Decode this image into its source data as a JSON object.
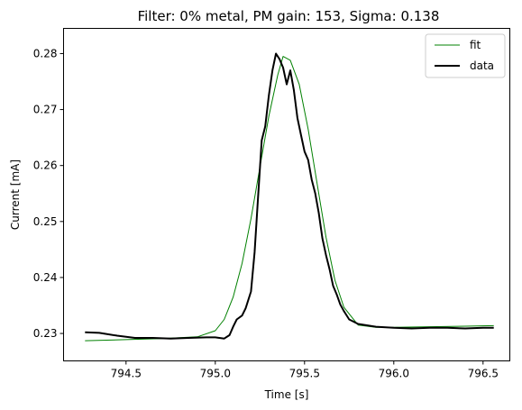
{
  "chart_data": {
    "type": "line",
    "title": "Filter: 0% metal, PM gain: 153, Sigma: 0.138",
    "xlabel": "Time [s]",
    "ylabel": "Current [mA]",
    "xlim": [
      794.15,
      796.65
    ],
    "ylim": [
      0.2251,
      0.2845
    ],
    "xticks": [
      794.5,
      795.0,
      795.5,
      796.0,
      796.5
    ],
    "xtick_labels": [
      "794.5",
      "795.0",
      "795.5",
      "796.0",
      "796.5"
    ],
    "yticks": [
      0.23,
      0.24,
      0.25,
      0.26,
      0.27,
      0.28
    ],
    "ytick_labels": [
      "0.23",
      "0.24",
      "0.25",
      "0.26",
      "0.27",
      "0.28"
    ],
    "grid": false,
    "legend_position": "top-right",
    "series": [
      {
        "name": "fit",
        "color": "#008000",
        "style": "thin",
        "x": [
          794.27,
          794.5,
          794.7,
          794.9,
          795.0,
          795.05,
          795.1,
          795.15,
          795.2,
          795.25,
          795.3,
          795.35,
          795.38,
          795.42,
          795.47,
          795.52,
          795.57,
          795.62,
          795.67,
          795.72,
          795.8,
          795.9,
          796.0,
          796.2,
          796.4,
          796.56
        ],
        "y": [
          0.2287,
          0.2289,
          0.2291,
          0.2294,
          0.2305,
          0.2325,
          0.2365,
          0.2425,
          0.2505,
          0.2597,
          0.2688,
          0.2762,
          0.2795,
          0.2788,
          0.2745,
          0.2665,
          0.2568,
          0.2472,
          0.2395,
          0.2347,
          0.2315,
          0.2311,
          0.2311,
          0.2312,
          0.2313,
          0.2314
        ]
      },
      {
        "name": "data",
        "color": "#000000",
        "style": "thick",
        "x": [
          794.27,
          794.35,
          794.45,
          794.55,
          794.65,
          794.75,
          794.85,
          794.95,
          795.0,
          795.05,
          795.08,
          795.1,
          795.12,
          795.15,
          795.17,
          795.2,
          795.22,
          795.24,
          795.26,
          795.28,
          795.3,
          795.32,
          795.34,
          795.36,
          795.38,
          795.4,
          795.42,
          795.44,
          795.46,
          795.48,
          795.5,
          795.52,
          795.54,
          795.56,
          795.58,
          795.6,
          795.62,
          795.64,
          795.66,
          795.68,
          795.7,
          795.72,
          795.75,
          795.8,
          795.9,
          796.0,
          796.1,
          796.2,
          796.3,
          796.4,
          796.5,
          796.56
        ],
        "y": [
          0.2302,
          0.2301,
          0.2296,
          0.2292,
          0.2292,
          0.2291,
          0.2292,
          0.2293,
          0.2293,
          0.2291,
          0.2297,
          0.2312,
          0.2325,
          0.2332,
          0.2345,
          0.2375,
          0.2445,
          0.2545,
          0.2645,
          0.267,
          0.2725,
          0.277,
          0.28,
          0.279,
          0.2775,
          0.2745,
          0.277,
          0.2735,
          0.2685,
          0.2655,
          0.2625,
          0.261,
          0.2575,
          0.255,
          0.2515,
          0.247,
          0.244,
          0.2415,
          0.2385,
          0.237,
          0.2352,
          0.234,
          0.2325,
          0.2317,
          0.2312,
          0.231,
          0.2309,
          0.231,
          0.231,
          0.2309,
          0.231,
          0.231
        ]
      }
    ]
  }
}
